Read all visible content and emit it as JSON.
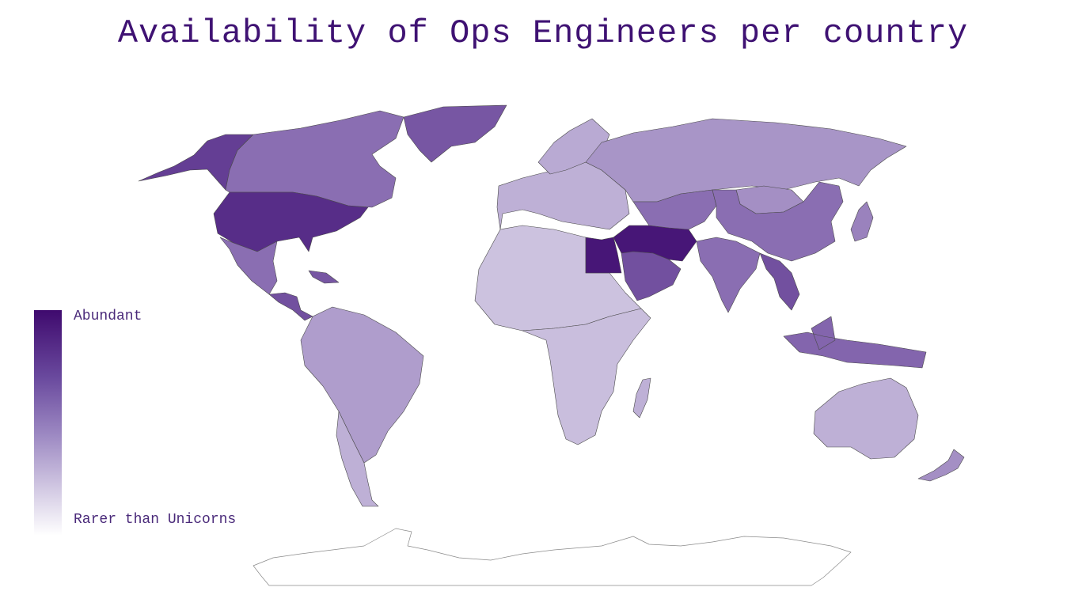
{
  "title": "Availability of Ops Engineers per country",
  "legend": {
    "max_label": "Abundant",
    "min_label": "Rarer than Unicorns",
    "color_max": "#3f0a6e",
    "color_min": "#ffffff"
  },
  "regions": [
    {
      "name": "alaska",
      "level": 0.78
    },
    {
      "name": "canada",
      "level": 0.62
    },
    {
      "name": "greenland",
      "level": 0.7
    },
    {
      "name": "united-states",
      "level": 0.85
    },
    {
      "name": "mexico",
      "level": 0.62
    },
    {
      "name": "central-america",
      "level": 0.72
    },
    {
      "name": "cuba",
      "level": 0.7
    },
    {
      "name": "south-america",
      "level": 0.45
    },
    {
      "name": "patagonia",
      "level": 0.38
    },
    {
      "name": "europe",
      "level": 0.38
    },
    {
      "name": "scandinavia",
      "level": 0.4
    },
    {
      "name": "russia",
      "level": 0.48
    },
    {
      "name": "north-africa",
      "level": 0.3
    },
    {
      "name": "egypt",
      "level": 0.95
    },
    {
      "name": "sub-saharan-africa",
      "level": 0.32
    },
    {
      "name": "madagascar",
      "level": 0.38
    },
    {
      "name": "middle-east",
      "level": 0.95
    },
    {
      "name": "arabia",
      "level": 0.72
    },
    {
      "name": "central-asia",
      "level": 0.62
    },
    {
      "name": "mongolia",
      "level": 0.5
    },
    {
      "name": "china",
      "level": 0.62
    },
    {
      "name": "india",
      "level": 0.62
    },
    {
      "name": "southeast-asia",
      "level": 0.72
    },
    {
      "name": "japan",
      "level": 0.55
    },
    {
      "name": "indonesia",
      "level": 0.65
    },
    {
      "name": "australia",
      "level": 0.38
    },
    {
      "name": "new-zealand",
      "level": 0.5
    },
    {
      "name": "antarctica",
      "level": 0.0
    }
  ]
}
